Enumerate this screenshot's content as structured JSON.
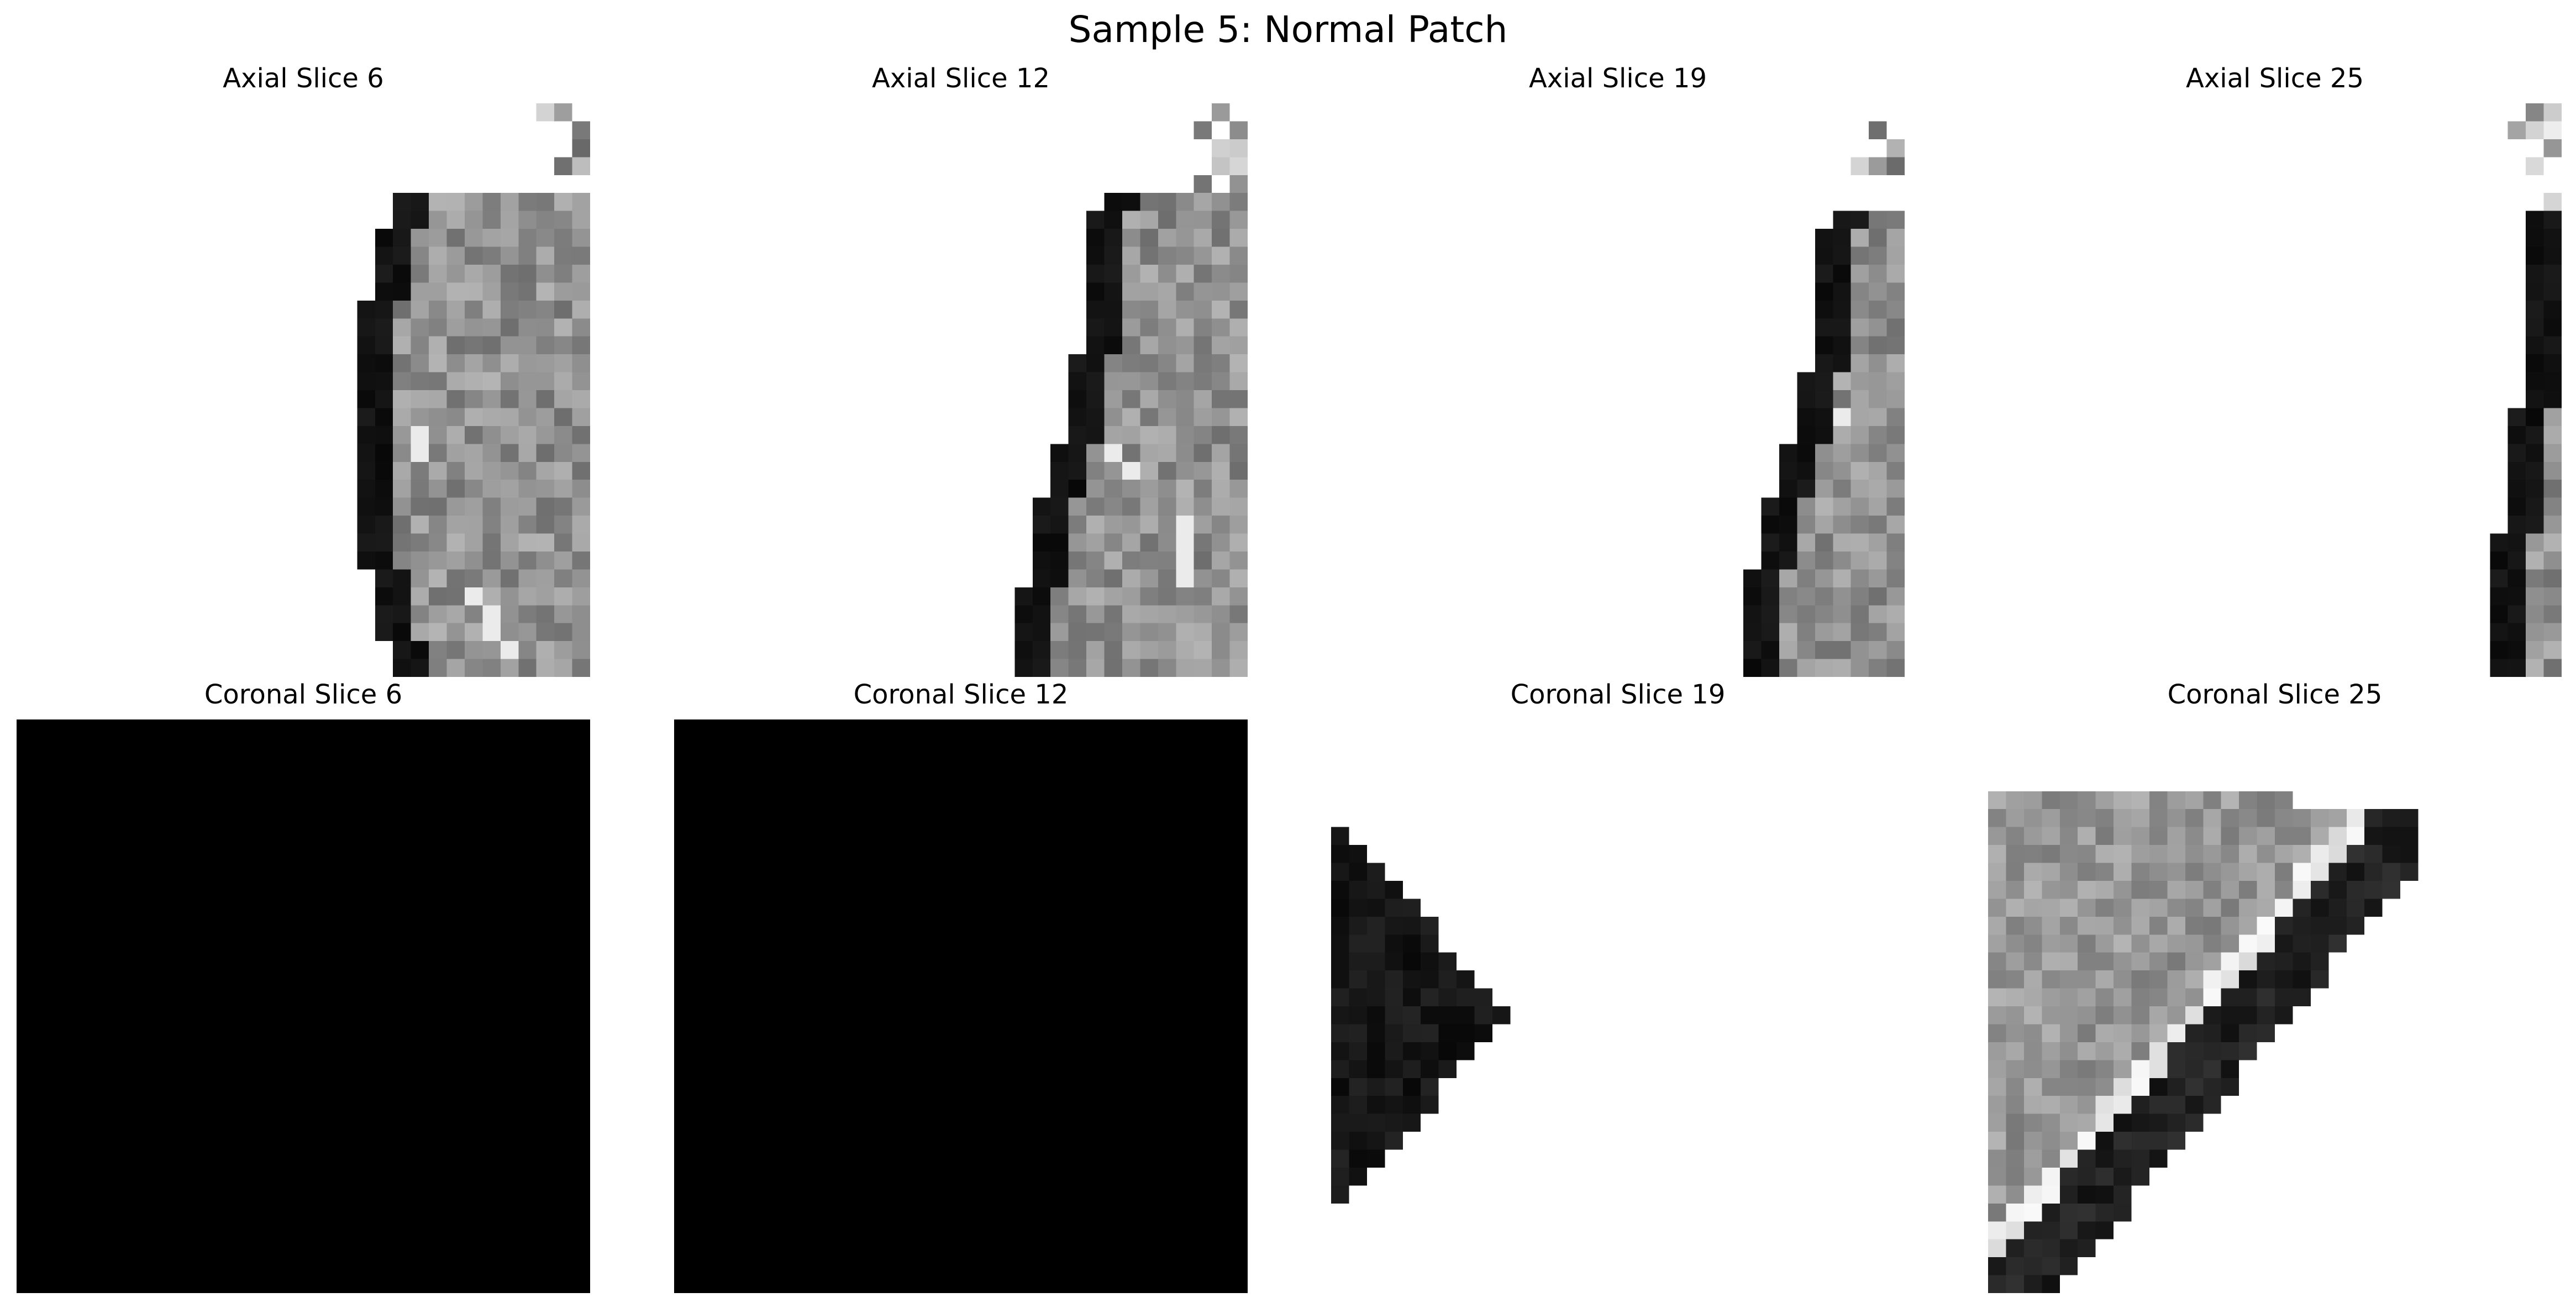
{
  "figure": {
    "title": "Sample 5: Normal Patch",
    "panels": [
      {
        "title": "Axial Slice 6",
        "plane": "axial",
        "slice": 6
      },
      {
        "title": "Axial Slice 12",
        "plane": "axial",
        "slice": 12
      },
      {
        "title": "Axial Slice 19",
        "plane": "axial",
        "slice": 19
      },
      {
        "title": "Axial Slice 25",
        "plane": "axial",
        "slice": 25
      },
      {
        "title": "Coronal Slice 6",
        "plane": "coronal",
        "slice": 6
      },
      {
        "title": "Coronal Slice 12",
        "plane": "coronal",
        "slice": 12
      },
      {
        "title": "Coronal Slice 19",
        "plane": "coronal",
        "slice": 19
      },
      {
        "title": "Coronal Slice 25",
        "plane": "coronal",
        "slice": 25
      }
    ],
    "colormap": "grayscale",
    "background_color": "#ffffff"
  }
}
